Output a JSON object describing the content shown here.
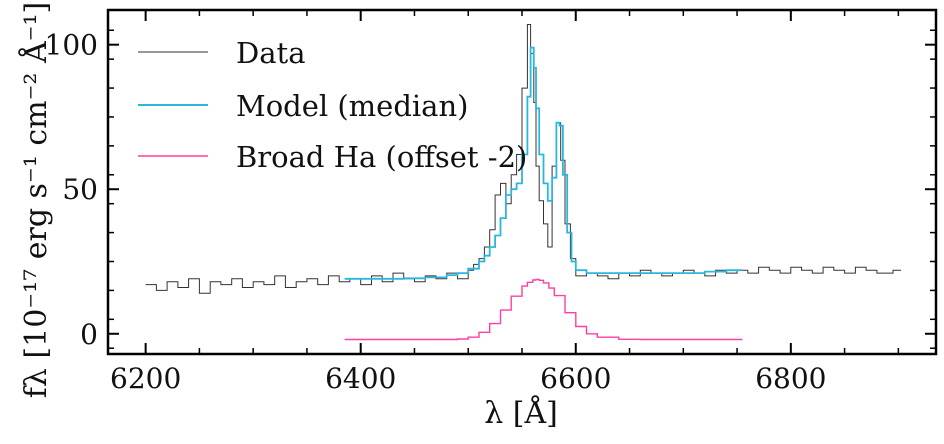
{
  "colors": {
    "data": "#333333",
    "model": "#2db6dd",
    "broad": "#ff3fa4",
    "axes": "#000000",
    "background": "#ffffff"
  },
  "chart_data": {
    "type": "line",
    "title": "",
    "xlabel": "λ [Å]",
    "ylabel": "fλ [10⁻¹⁷ erg s⁻¹ cm⁻² Å⁻¹]",
    "xlim": [
      6165,
      6935
    ],
    "ylim": [
      -7,
      112
    ],
    "xticks": [
      6200,
      6400,
      6600,
      6800
    ],
    "yticks": [
      0,
      50,
      100
    ],
    "grid": false,
    "legend": {
      "position": "top-left",
      "entries": [
        "Data",
        "Model (median)",
        "Broad Ha (offset -2)"
      ]
    },
    "series": [
      {
        "name": "Data",
        "style": "step",
        "color": "#333333",
        "x": [
          6200,
          6210,
          6220,
          6230,
          6240,
          6250,
          6260,
          6270,
          6280,
          6290,
          6300,
          6310,
          6320,
          6330,
          6340,
          6350,
          6360,
          6370,
          6380,
          6390,
          6400,
          6410,
          6420,
          6430,
          6440,
          6450,
          6460,
          6470,
          6480,
          6490,
          6500,
          6505,
          6510,
          6515,
          6520,
          6525,
          6530,
          6535,
          6540,
          6545,
          6550,
          6555,
          6558,
          6561,
          6563,
          6566,
          6570,
          6574,
          6578,
          6582,
          6586,
          6590,
          6595,
          6600,
          6610,
          6620,
          6630,
          6640,
          6650,
          6660,
          6670,
          6680,
          6690,
          6700,
          6710,
          6720,
          6730,
          6740,
          6750,
          6760,
          6770,
          6780,
          6790,
          6800,
          6810,
          6820,
          6830,
          6840,
          6850,
          6860,
          6870,
          6880,
          6895
        ],
        "values": [
          17,
          15,
          18,
          16,
          19,
          14,
          18,
          17,
          19,
          16,
          18,
          17,
          20,
          16,
          18,
          19,
          17,
          20,
          18,
          19,
          17,
          20,
          18,
          21,
          19,
          18,
          20,
          19,
          21,
          19,
          22,
          24,
          26,
          30,
          36,
          48,
          52,
          45,
          55,
          62,
          85,
          107,
          97,
          80,
          58,
          46,
          38,
          30,
          58,
          73,
          60,
          38,
          26,
          20,
          21,
          20,
          19,
          21,
          20,
          22,
          21,
          20,
          21,
          22,
          21,
          20,
          22,
          21,
          22,
          21,
          23,
          22,
          21,
          23,
          22,
          21,
          23,
          22,
          21,
          23,
          22,
          21,
          22
        ]
      },
      {
        "name": "Model (median)",
        "style": "step",
        "color": "#2db6dd",
        "x": [
          6385,
          6400,
          6420,
          6440,
          6460,
          6480,
          6490,
          6500,
          6510,
          6515,
          6520,
          6525,
          6530,
          6535,
          6540,
          6545,
          6550,
          6555,
          6558,
          6561,
          6563,
          6566,
          6570,
          6574,
          6578,
          6582,
          6585,
          6588,
          6592,
          6596,
          6600,
          6610,
          6620,
          6640,
          6660,
          6680,
          6700,
          6720,
          6740,
          6750
        ],
        "values": [
          19,
          19,
          19,
          19.2,
          19.5,
          20.3,
          21,
          22.5,
          25,
          27,
          30,
          34,
          40,
          48,
          50,
          52,
          62,
          82,
          99,
          92,
          78,
          62,
          52,
          46,
          54,
          73,
          72,
          55,
          35,
          25,
          22,
          21,
          21,
          21,
          21,
          21,
          21,
          21.5,
          22,
          22
        ]
      },
      {
        "name": "Broad Ha (offset -2)",
        "style": "step",
        "color": "#ff3fa4",
        "x": [
          6385,
          6400,
          6420,
          6440,
          6460,
          6480,
          6490,
          6500,
          6510,
          6520,
          6530,
          6540,
          6550,
          6555,
          6560,
          6563,
          6566,
          6570,
          6575,
          6580,
          6590,
          6600,
          6610,
          6620,
          6640,
          6660,
          6680,
          6700,
          6720,
          6740,
          6750
        ],
        "values": [
          -2,
          -2,
          -2,
          -2,
          -2,
          -2,
          -1.8,
          -1.2,
          0.5,
          3.5,
          8.2,
          13,
          16.5,
          17.8,
          18.6,
          18.8,
          18.5,
          17.6,
          15.8,
          13.2,
          7.3,
          2.5,
          0,
          -1.2,
          -1.9,
          -2,
          -2,
          -2,
          -2,
          -2,
          -2
        ]
      }
    ]
  }
}
